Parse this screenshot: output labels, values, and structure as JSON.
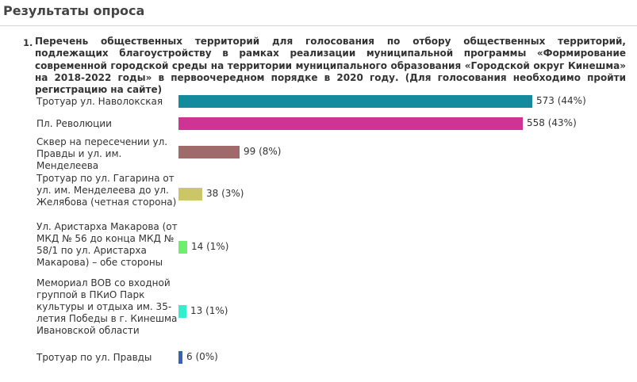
{
  "page_title": "Результаты опроса",
  "question": {
    "number": "1.",
    "text": "Перечень общественных территорий для голосования по отбору общественных территорий, подлежащих благоустройству в рамках реализации муниципальной программы «Формирование современной городской среды на территории муниципального образования «Городской округ Кинешма» на 2018-2022 годы» в первоочередном порядке в 2020 году. (Для голосования необходимо пройти регистрацию на сайте)"
  },
  "chart_data": {
    "type": "bar",
    "orientation": "horizontal",
    "categories": [
      "Тротуар ул. Наволокская",
      "Пл. Революции",
      "Сквер на пересечении ул. Правды и ул. им. Менделеева",
      "Тротуар по ул. Гагарина от ул. им. Менделеева до ул. Желябова (четная сторона)",
      "Ул. Аристарха Макарова (от МКД № 56 до конца МКД № 58/1 по ул. Аристарха Макарова) – обе стороны",
      "Мемориал ВОВ со входной группой в ПКиО Парк культуры и отдыха им. 35-летия Победы в г. Кинешма Ивановской области",
      "Тротуар по ул. Правды"
    ],
    "values": [
      573,
      558,
      99,
      38,
      14,
      13,
      6
    ],
    "value_labels": [
      "573 (44%)",
      "558 (43%)",
      "99 (8%)",
      "38 (3%)",
      "14 (1%)",
      "13 (1%)",
      "6 (0%)"
    ],
    "colors": [
      "#138b9c",
      "#cf3494",
      "#9e6a6a",
      "#cbc769",
      "#6fed6f",
      "#2ff0cc",
      "#3463b8"
    ],
    "max_value": 573
  }
}
